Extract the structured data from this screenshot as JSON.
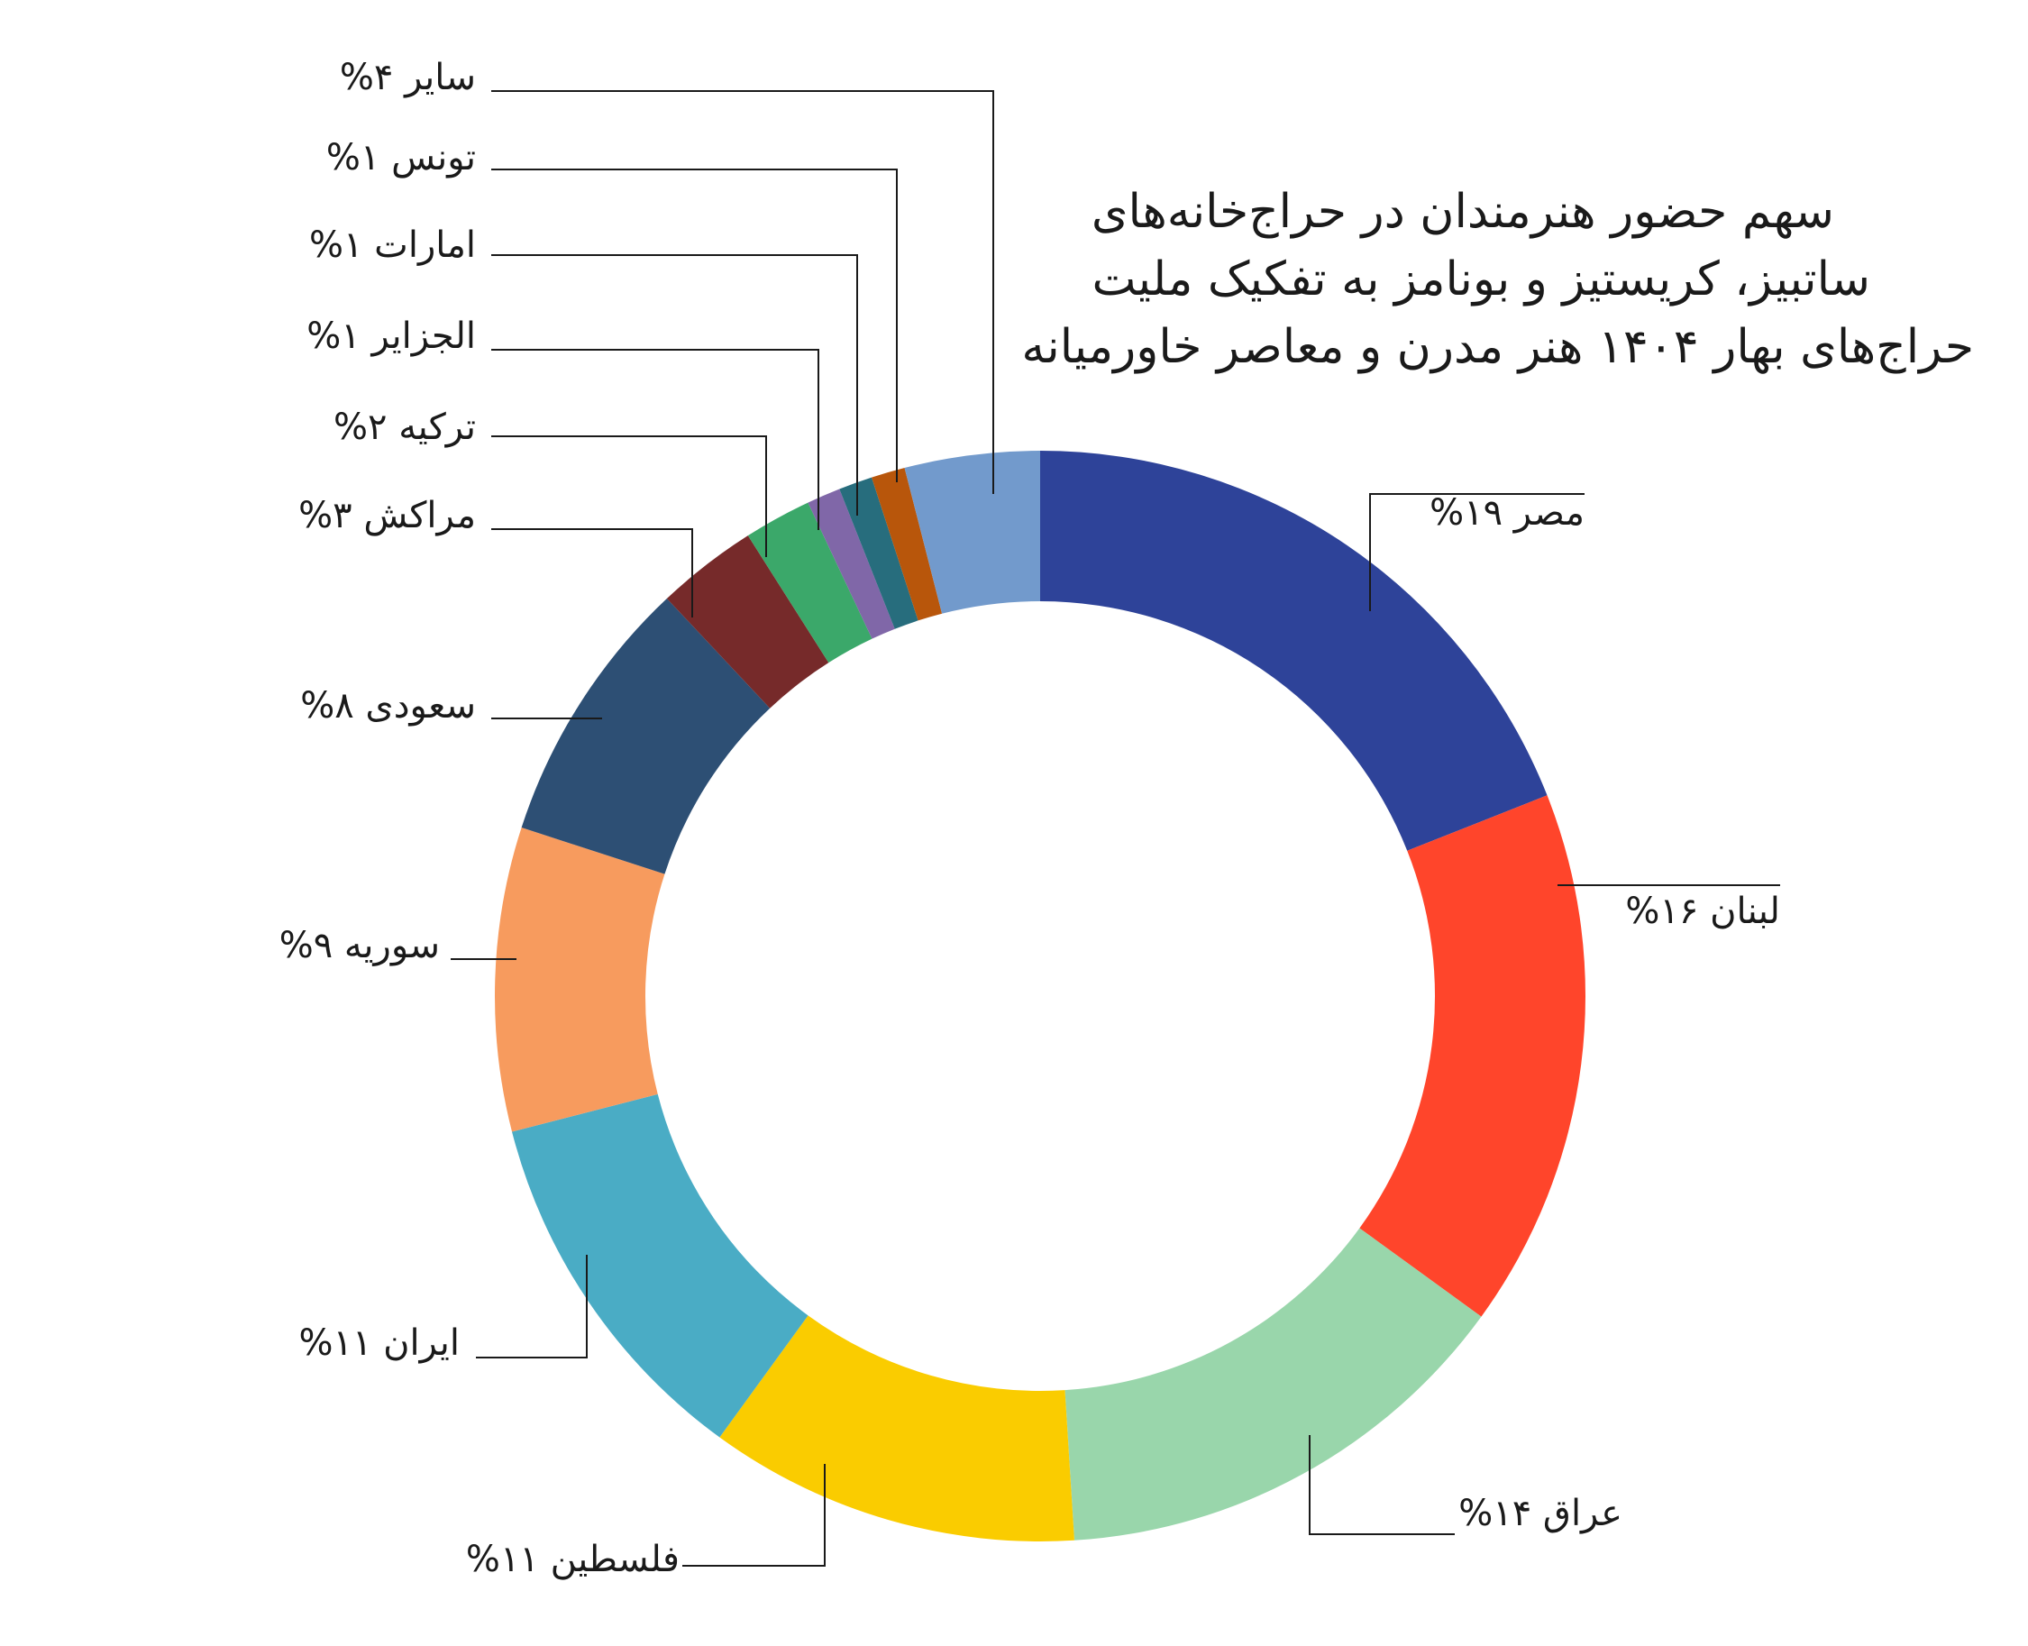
{
  "chart_data": {
    "type": "pie",
    "variant": "donut",
    "title_lines": [
      "سهم حضور هنرمندان در حراج‌خانه‌های",
      "ساتبیز، کریستیز و بونامز به تفکیک ملیت",
      "حراج‌های بهار ۱۴۰۴ هنر مدرن و معاصر خاورمیانه"
    ],
    "slices": [
      {
        "name": "مصر",
        "value": 19,
        "label": "مصر  ۱۹%",
        "color": "#2E4399"
      },
      {
        "name": "لبنان",
        "value": 16,
        "label": "لبنان  ۱۶%",
        "color": "#FF452B"
      },
      {
        "name": "عراق",
        "value": 14,
        "label": "عراق  ۱۴%",
        "color": "#99D6AB"
      },
      {
        "name": "فلسطین",
        "value": 11,
        "label": "فلسطین ۱۱%",
        "color": "#FACC00"
      },
      {
        "name": "ایران",
        "value": 11,
        "label": "ایران  ۱۱%",
        "color": "#4AACC5"
      },
      {
        "name": "سوریه",
        "value": 9,
        "label": "سوریه  ۹%",
        "color": "#F79B5E"
      },
      {
        "name": "سعودی",
        "value": 8,
        "label": "سعودی  ۸%",
        "color": "#2D4F74"
      },
      {
        "name": "مراکش",
        "value": 3,
        "label": "مراکش  ۳%",
        "color": "#762A2A"
      },
      {
        "name": "ترکیه",
        "value": 2,
        "label": "ترکیه  ۲%",
        "color": "#3BA86A"
      },
      {
        "name": "الجزایر",
        "value": 1,
        "label": "الجزایر  ۱%",
        "color": "#8067A8"
      },
      {
        "name": "امارات",
        "value": 1,
        "label": "امارات  ۱%",
        "color": "#276D7D"
      },
      {
        "name": "تونس",
        "value": 1,
        "label": "تونس  ۱%",
        "color": "#B8560B"
      },
      {
        "name": "سایر",
        "value": 4,
        "label": "سایر ۴%",
        "color": "#729ACC"
      }
    ]
  }
}
